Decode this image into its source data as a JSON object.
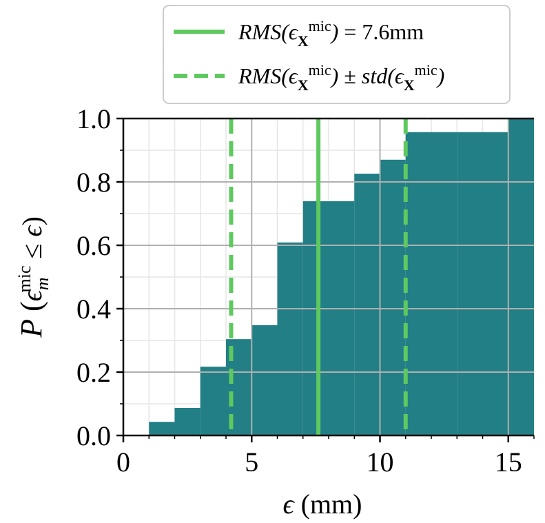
{
  "chart_data": {
    "type": "bar",
    "subtype": "cumulative-histogram",
    "bins": [
      {
        "x0": 1,
        "x1": 2,
        "value": 0.043
      },
      {
        "x0": 2,
        "x1": 3,
        "value": 0.087
      },
      {
        "x0": 3,
        "x1": 4,
        "value": 0.217
      },
      {
        "x0": 4,
        "x1": 5,
        "value": 0.304
      },
      {
        "x0": 5,
        "x1": 6,
        "value": 0.348
      },
      {
        "x0": 6,
        "x1": 7,
        "value": 0.609
      },
      {
        "x0": 7,
        "x1": 8,
        "value": 0.739
      },
      {
        "x0": 8,
        "x1": 9,
        "value": 0.739
      },
      {
        "x0": 9,
        "x1": 10,
        "value": 0.826
      },
      {
        "x0": 10,
        "x1": 11,
        "value": 0.87
      },
      {
        "x0": 11,
        "x1": 12,
        "value": 0.957
      },
      {
        "x0": 12,
        "x1": 13,
        "value": 0.957
      },
      {
        "x0": 13,
        "x1": 14,
        "value": 0.957
      },
      {
        "x0": 14,
        "x1": 15,
        "value": 0.957
      },
      {
        "x0": 15,
        "x1": 16,
        "value": 1.0
      }
    ],
    "reference_lines": [
      {
        "x": 7.6,
        "style": "solid"
      },
      {
        "x": 4.2,
        "style": "dashed"
      },
      {
        "x": 11.0,
        "style": "dashed"
      }
    ],
    "legend": [
      {
        "label": "RMS(ε_X^mic) = 7.6mm",
        "style": "solid"
      },
      {
        "label": "RMS(ε_X^mic) ± std(ε_X^mic)",
        "style": "dashed"
      }
    ],
    "legend_position": "top-right",
    "xlabel": "ε (mm)",
    "ylabel": "P(ε_m^mic ≤ ε)",
    "xlim": [
      0,
      16
    ],
    "ylim": [
      0,
      1.0
    ],
    "xticks": [
      0,
      5,
      10,
      15
    ],
    "yticks": [
      0.0,
      0.2,
      0.4,
      0.6,
      0.8,
      1.0
    ],
    "xtick_labels": [
      "0",
      "5",
      "10",
      "15"
    ],
    "ytick_labels": [
      "0.0",
      "0.2",
      "0.4",
      "0.6",
      "0.8",
      "1.0"
    ],
    "grid": true,
    "bar_color": "#227f85",
    "line_color": "#5ec95e"
  }
}
